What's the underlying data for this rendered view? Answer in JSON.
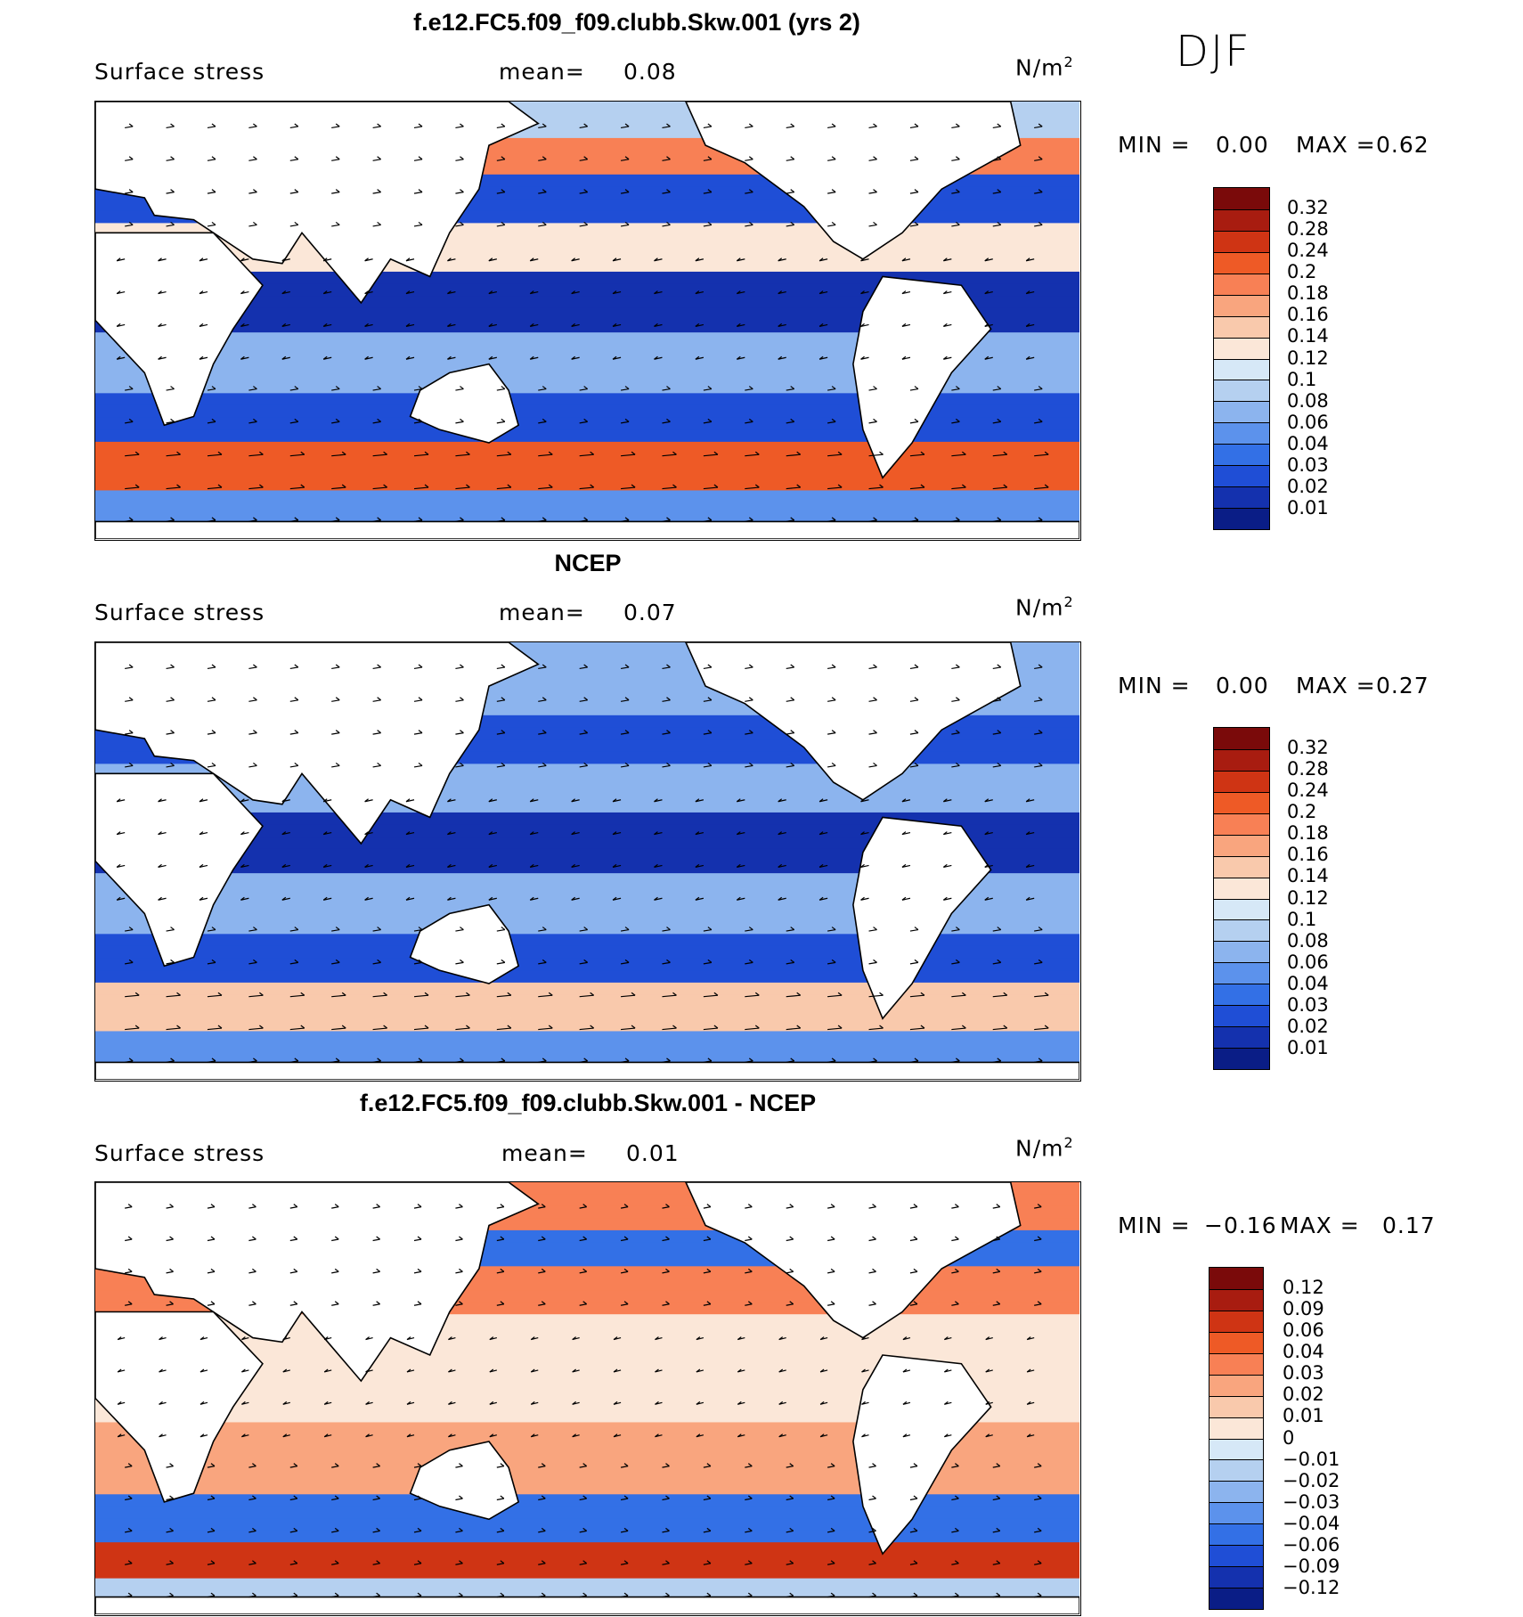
{
  "season": "DJF",
  "panels": [
    {
      "id": "model",
      "title": "f.e12.FC5.f09_f09.clubb.Skw.001 (yrs 2)",
      "variable": "Surface stress",
      "mean_label": "mean=",
      "mean_value": "0.08",
      "units": "N/m",
      "units_exp": "2",
      "min_label": "MIN =",
      "min_value": "0.00",
      "max_label": "MAX =",
      "max_value": "0.62",
      "colorbar": [
        "0.32",
        "0.28",
        "0.24",
        "0.2",
        "0.18",
        "0.16",
        "0.14",
        "0.12",
        "0.1",
        "0.08",
        "0.06",
        "0.04",
        "0.03",
        "0.02",
        "0.01"
      ]
    },
    {
      "id": "obs",
      "title": "NCEP",
      "variable": "Surface stress",
      "mean_label": "mean=",
      "mean_value": "0.07",
      "units": "N/m",
      "units_exp": "2",
      "min_label": "MIN =",
      "min_value": "0.00",
      "max_label": "MAX =",
      "max_value": "0.27",
      "colorbar": [
        "0.32",
        "0.28",
        "0.24",
        "0.2",
        "0.18",
        "0.16",
        "0.14",
        "0.12",
        "0.1",
        "0.08",
        "0.06",
        "0.04",
        "0.03",
        "0.02",
        "0.01"
      ]
    },
    {
      "id": "diff",
      "title": "f.e12.FC5.f09_f09.clubb.Skw.001 - NCEP",
      "variable": "Surface stress",
      "mean_label": "mean=",
      "mean_value": "0.01",
      "units": "N/m",
      "units_exp": "2",
      "min_label": "MIN =",
      "min_value": "−0.16",
      "max_label": "MAX =",
      "max_value": "0.17",
      "colorbar": [
        "0.12",
        "0.09",
        "0.06",
        "0.04",
        "0.03",
        "0.02",
        "0.01",
        "0",
        "−0.01",
        "−0.02",
        "−0.03",
        "−0.04",
        "−0.06",
        "−0.09",
        "−0.12"
      ]
    }
  ],
  "colors": {
    "abs_scale": [
      "#7a0a0a",
      "#a81c10",
      "#cf3414",
      "#ee5a26",
      "#f88055",
      "#f9a57e",
      "#f9c9ac",
      "#fbe7d8",
      "#d6e8f7",
      "#b5d0f0",
      "#8cb4ee",
      "#5c92ec",
      "#3370e6",
      "#1f4ed6",
      "#1431ae",
      "#0a1d86"
    ],
    "diff_scale": [
      "#7a0a0a",
      "#a81c10",
      "#cf3414",
      "#ee5a26",
      "#f88055",
      "#f9a57e",
      "#f9c9ac",
      "#fbe7d8",
      "#d6e8f7",
      "#b5d0f0",
      "#8cb4ee",
      "#5c92ec",
      "#3370e6",
      "#1f4ed6",
      "#1431ae",
      "#0a1d86"
    ]
  }
}
